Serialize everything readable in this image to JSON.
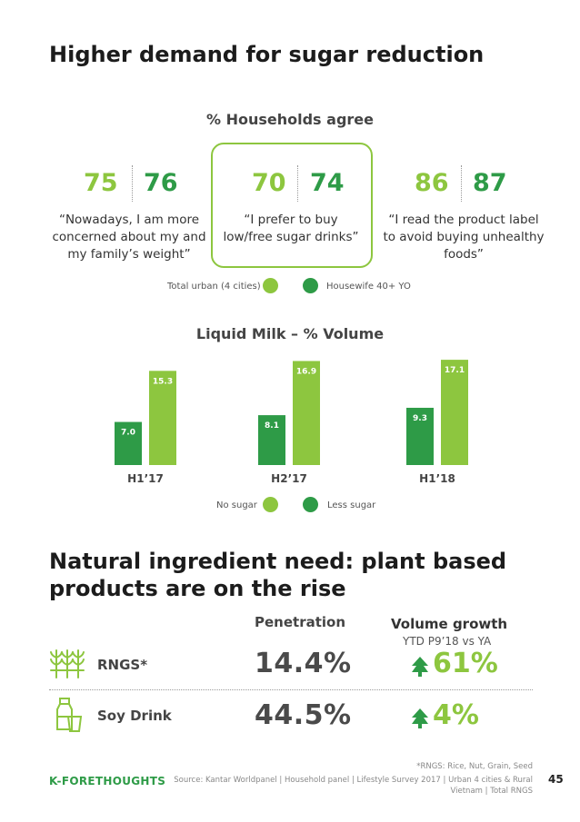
{
  "title": "Higher demand for sugar reduction",
  "survey": {
    "heading": "% Households agree",
    "groups": [
      {
        "v1": "75",
        "v2": "76",
        "quote": "“Nowadays, I am more concerned about my and my family’s weight”"
      },
      {
        "v1": "70",
        "v2": "74",
        "quote": "“I prefer to buy low/free sugar drinks”"
      },
      {
        "v1": "86",
        "v2": "87",
        "quote": "“I read the product label to avoid buying unhealthy foods”"
      }
    ],
    "legend": {
      "total_urban": "Total urban (4 cities)",
      "housewife": "Housewife 40+ YO"
    }
  },
  "colors": {
    "light_green": "#8dc63f",
    "dark_green": "#2e9b47"
  },
  "chart_data": {
    "type": "bar",
    "title": "Liquid Milk – % Volume",
    "categories": [
      "H1’17",
      "H2’17",
      "H1’18"
    ],
    "series": [
      {
        "name": "Less sugar",
        "values": [
          7.0,
          8.1,
          9.3
        ],
        "labels": [
          "7.0",
          "8.1",
          "9.3"
        ]
      },
      {
        "name": "No sugar",
        "values": [
          15.3,
          16.9,
          17.1
        ],
        "labels": [
          "15.3",
          "16.9",
          "17.1"
        ]
      }
    ],
    "legend": {
      "no_sugar": "No sugar",
      "less_sugar": "Less sugar"
    },
    "ylim": [
      0,
      18
    ]
  },
  "natural": {
    "title_line1": "Natural ingredient need: plant based",
    "title_line2": "products are on the rise",
    "col_penetration": "Penetration",
    "col_volume": "Volume growth",
    "col_volume_sub": "YTD P9’18 vs YA",
    "rows": [
      {
        "label": "RNGS*",
        "penetration": "14.4%",
        "growth": "61%",
        "icon": "wheat-icon"
      },
      {
        "label": "Soy Drink",
        "penetration": "44.5%",
        "growth": "4%",
        "icon": "soy-milk-icon"
      }
    ]
  },
  "footer": {
    "brand": "K-FORETHOUGHTS",
    "note": "*RNGS: Rice, Nut, Grain, Seed",
    "source_line1": "Source: Kantar Worldpanel | Household panel | Lifestyle Survey 2017 | Urban 4 cities & Rural",
    "source_line2": "Vietnam | Total RNGS",
    "page": "45"
  }
}
